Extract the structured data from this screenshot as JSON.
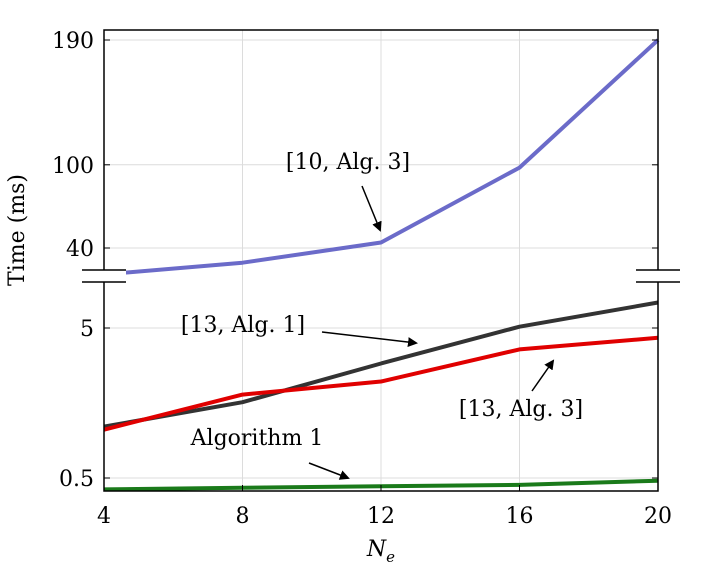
{
  "chart_data": {
    "type": "line",
    "title": "",
    "xlabel_base": "N",
    "xlabel_sub": "e",
    "ylabel": "Time (ms)",
    "x": [
      4,
      8,
      12,
      16,
      20
    ],
    "xticks": [
      "4",
      "8",
      "12",
      "16",
      "20"
    ],
    "yticks": [
      "190",
      "100",
      "40",
      "5",
      "0.5"
    ],
    "grid": true,
    "legend": "none (inline annotations with arrows)",
    "axis_break": "between 5 and 40",
    "series": [
      {
        "name": "[10, Alg. 3]",
        "color": "#6b6bc9",
        "values": [
          22,
          30,
          44,
          98,
          190
        ]
      },
      {
        "name": "[13, Alg. 1]",
        "color": "#333333",
        "values": [
          1.1,
          1.6,
          2.9,
          5.1,
          7.4
        ]
      },
      {
        "name": "[13, Alg. 3]",
        "color": "#e00000",
        "values": [
          1.05,
          1.8,
          2.2,
          3.6,
          4.3
        ]
      },
      {
        "name": "Algorithm 1",
        "color": "#1a7a1a",
        "values": [
          0.42,
          0.43,
          0.44,
          0.45,
          0.48
        ]
      }
    ]
  }
}
